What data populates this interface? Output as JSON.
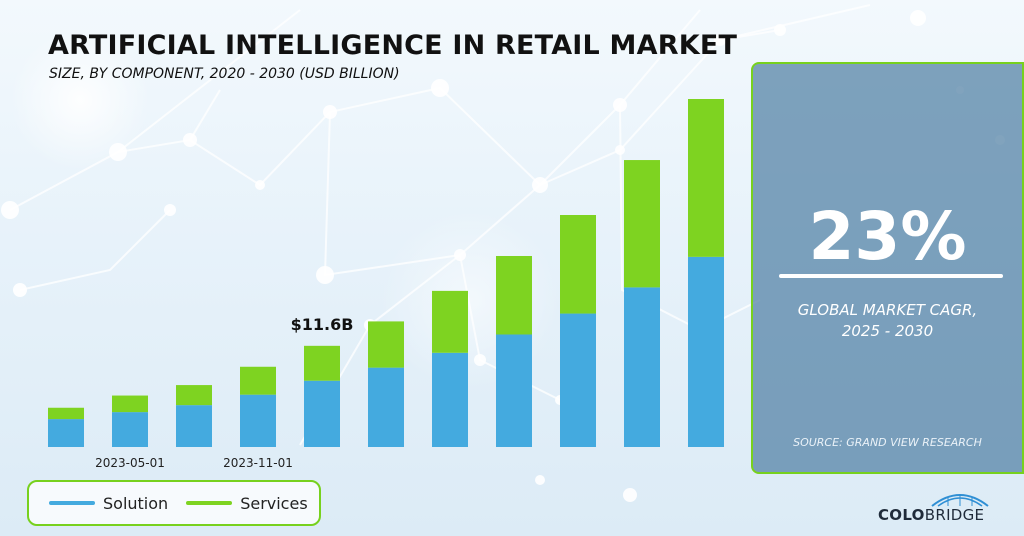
{
  "header": {
    "title": "ARTIFICIAL INTELLIGENCE IN RETAIL MARKET",
    "subtitle": "SIZE, BY COMPONENT, 2020 - 2030 (USD BILLION)"
  },
  "legend": {
    "items": [
      {
        "label": "Solution",
        "color": "#44aadf"
      },
      {
        "label": "Services",
        "color": "#7ed321"
      }
    ]
  },
  "highlight": {
    "cagr_value": "23%",
    "cagr_label_line1": "GLOBAL MARKET CAGR,",
    "cagr_label_line2": "2025 - 2030",
    "source": "SOURCE: GRAND VIEW RESEARCH"
  },
  "brand": {
    "name_part1": "COLO",
    "name_part2": "BRIDGE"
  },
  "colors": {
    "solution": "#44aadf",
    "services": "#7ed321",
    "panel_border": "#77d11e",
    "panel_bg": "#517fa4"
  },
  "chart_data": {
    "type": "bar",
    "stacked": true,
    "categories": [
      "",
      "2023-05-01",
      "",
      "2023-11-01",
      "",
      "",
      "",
      "",
      "",
      "",
      ""
    ],
    "series": [
      {
        "name": "Solution",
        "values": [
          3.2,
          4.0,
          4.8,
          6.0,
          7.6,
          9.1,
          10.8,
          12.9,
          15.3,
          18.3,
          21.8
        ]
      },
      {
        "name": "Services",
        "values": [
          1.3,
          1.9,
          2.3,
          3.2,
          4.0,
          5.3,
          7.1,
          9.0,
          11.3,
          14.6,
          18.1
        ]
      }
    ],
    "annotations": [
      {
        "index": 4,
        "text": "$11.6B"
      }
    ],
    "ylim": [
      0,
      40
    ],
    "xlabel": "",
    "ylabel": "",
    "grid": false,
    "legend": "bottom-left"
  }
}
